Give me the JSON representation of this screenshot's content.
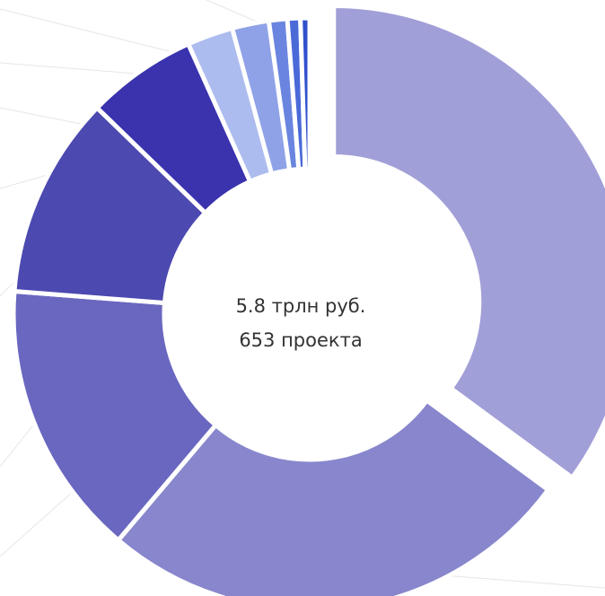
{
  "chart_data": {
    "type": "pie",
    "donut": true,
    "exploded_index": 0,
    "center_text": [
      "5.8 трлн руб.",
      "653 проекта"
    ],
    "values": [
      35,
      26,
      15,
      11,
      6,
      2.5,
      2,
      1,
      0.7,
      0.5
    ],
    "colors": [
      "#a19fd7",
      "#8886cc",
      "#6a67c0",
      "#4c49b0",
      "#3a33ad",
      "#adbcef",
      "#8fa2e8",
      "#6a85e0",
      "#4a6ad8",
      "#3050cc"
    ]
  }
}
